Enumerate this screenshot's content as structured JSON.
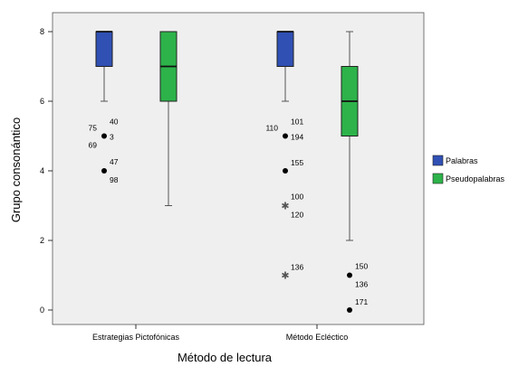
{
  "chart_data": {
    "type": "boxplot",
    "xlabel": "Método de lectura",
    "ylabel": "Grupo consonántico",
    "ylim": [
      0,
      8.4
    ],
    "yticks": [
      0,
      2,
      4,
      6,
      8
    ],
    "grid": false,
    "legend_position": "right",
    "categories": [
      "Estrategias Pictofónicas",
      "Método Ecléctico"
    ],
    "series": [
      {
        "name": "Palabras",
        "color": "#3050b4"
      },
      {
        "name": "Pseudopalabras",
        "color": "#2db34a"
      }
    ],
    "boxes": [
      {
        "category": "Estrategias Pictofónicas",
        "series": "Palabras",
        "min": 6,
        "q1": 7,
        "median": 8,
        "q3": 8,
        "max": 8,
        "outliers": [
          {
            "value": 5,
            "marker": "circle",
            "labels": [
              "75",
              "40",
              "3",
              "69"
            ]
          },
          {
            "value": 4,
            "marker": "circle",
            "labels": [
              "47",
              "98"
            ]
          }
        ]
      },
      {
        "category": "Estrategias Pictofónicas",
        "series": "Pseudopalabras",
        "min": 3,
        "q1": 6,
        "median": 7,
        "q3": 8,
        "max": 8,
        "outliers": []
      },
      {
        "category": "Método Ecléctico",
        "series": "Palabras",
        "min": 6,
        "q1": 7,
        "median": 8,
        "q3": 8,
        "max": 8,
        "outliers": [
          {
            "value": 5,
            "marker": "circle",
            "labels": [
              "110",
              "101",
              "194"
            ]
          },
          {
            "value": 4,
            "marker": "circle",
            "labels": [
              "155"
            ]
          },
          {
            "value": 3,
            "marker": "star",
            "labels": [
              "100",
              "120"
            ]
          },
          {
            "value": 1,
            "marker": "star",
            "labels": [
              "136"
            ]
          }
        ]
      },
      {
        "category": "Método Ecléctico",
        "series": "Pseudopalabras",
        "min": 2,
        "q1": 5,
        "median": 6,
        "q3": 7,
        "max": 8,
        "outliers": [
          {
            "value": 1,
            "marker": "circle",
            "labels": [
              "150",
              "136"
            ]
          },
          {
            "value": 0,
            "marker": "circle",
            "labels": [
              "171"
            ]
          }
        ]
      }
    ]
  }
}
